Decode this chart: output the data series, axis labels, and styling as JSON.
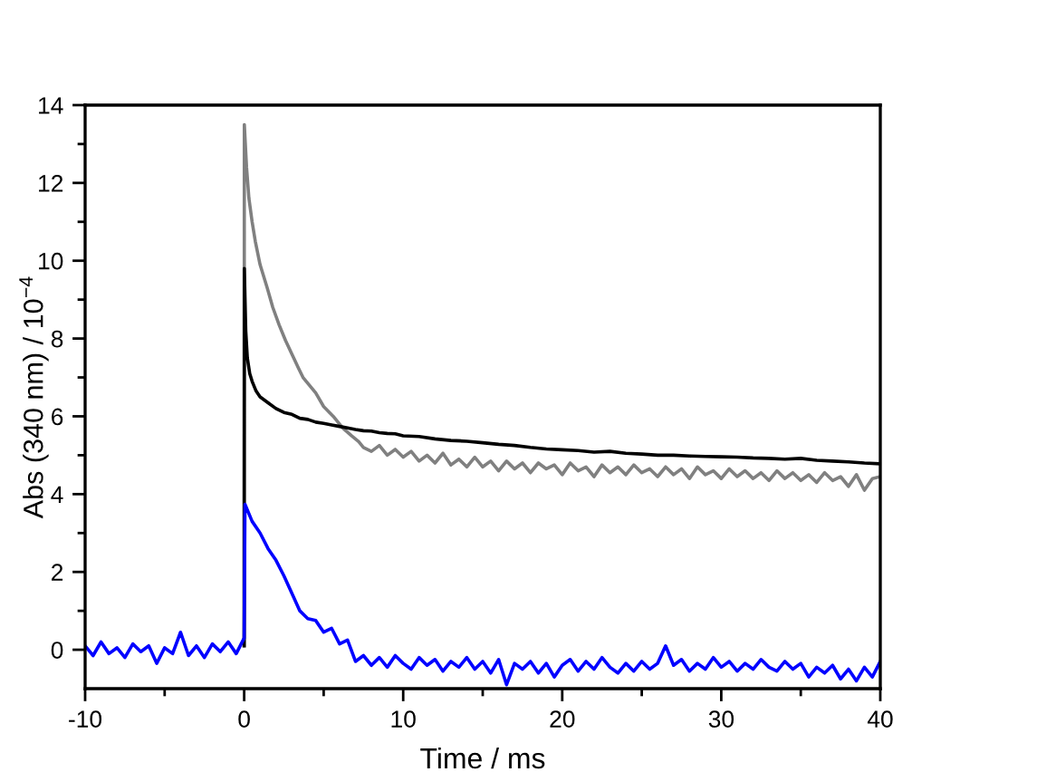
{
  "chart_data": {
    "type": "line",
    "xlabel": "Time / ms",
    "ylabel": "Abs (340 nm) / 10$^{−4}$",
    "xlim": [
      -10,
      40
    ],
    "ylim": [
      -1,
      14
    ],
    "xticks": [
      -10,
      0,
      10,
      20,
      30,
      40
    ],
    "yticks": [
      0,
      2,
      4,
      6,
      8,
      10,
      12,
      14
    ],
    "series": [
      {
        "color": "#808080",
        "x": [
          0,
          0.01,
          0.15,
          0.3,
          0.5,
          0.7,
          1.0,
          1.45,
          1.8,
          2.2,
          2.6,
          3.0,
          3.4,
          3.7,
          4.1,
          4.5,
          5.0,
          5.6,
          6.2,
          6.75,
          7.2,
          7.5,
          8,
          8.5,
          9,
          9.5,
          10,
          10.5,
          11,
          11.5,
          12,
          12.5,
          13,
          13.5,
          14,
          14.5,
          15,
          15.5,
          16,
          16.5,
          17,
          17.5,
          18,
          18.5,
          19,
          19.5,
          20,
          20.5,
          21,
          21.5,
          22,
          22.5,
          23,
          23.5,
          24,
          24.5,
          25,
          25.5,
          26,
          26.5,
          27,
          27.5,
          28,
          28.5,
          29,
          29.5,
          30,
          30.5,
          31,
          31.5,
          32,
          32.5,
          33,
          33.5,
          34,
          34.5,
          35,
          35.5,
          36,
          36.5,
          37,
          37.5,
          38,
          38.5,
          39,
          39.5,
          40
        ],
        "values": [
          0.1,
          13.5,
          12.4,
          11.6,
          11.0,
          10.5,
          9.9,
          9.3,
          8.8,
          8.35,
          7.95,
          7.6,
          7.25,
          7.0,
          6.8,
          6.6,
          6.25,
          6.0,
          5.7,
          5.5,
          5.35,
          5.2,
          5.1,
          5.25,
          5.0,
          5.15,
          4.95,
          5.1,
          4.85,
          5.0,
          4.8,
          5.05,
          4.75,
          4.9,
          4.7,
          4.95,
          4.7,
          4.85,
          4.6,
          4.85,
          4.65,
          4.8,
          4.55,
          4.8,
          4.65,
          4.75,
          4.5,
          4.8,
          4.6,
          4.7,
          4.45,
          4.75,
          4.55,
          4.7,
          4.5,
          4.75,
          4.55,
          4.65,
          4.45,
          4.7,
          4.5,
          4.65,
          4.4,
          4.7,
          4.5,
          4.6,
          4.4,
          4.65,
          4.45,
          4.6,
          4.4,
          4.55,
          4.35,
          4.6,
          4.4,
          4.55,
          4.35,
          4.5,
          4.3,
          4.55,
          4.35,
          4.45,
          4.2,
          4.5,
          4.1,
          4.4,
          4.45
        ]
      },
      {
        "color": "#000000",
        "x": [
          0,
          0.01,
          0.1,
          0.2,
          0.35,
          0.5,
          0.75,
          1,
          1.5,
          2,
          2.5,
          3,
          3.5,
          4,
          4.5,
          5,
          5.5,
          6,
          6.5,
          7,
          7.5,
          8,
          8.5,
          9,
          9.5,
          10,
          11,
          12,
          13,
          14,
          15,
          16,
          17,
          18,
          19,
          20,
          21,
          22,
          23,
          24,
          25,
          26,
          27,
          28,
          29,
          30,
          31,
          32,
          33,
          34,
          35,
          36,
          37,
          38,
          39,
          40
        ],
        "values": [
          0.1,
          9.8,
          8.2,
          7.5,
          7.1,
          6.9,
          6.65,
          6.5,
          6.35,
          6.2,
          6.1,
          6.05,
          5.95,
          5.92,
          5.85,
          5.82,
          5.78,
          5.74,
          5.7,
          5.66,
          5.63,
          5.62,
          5.58,
          5.56,
          5.55,
          5.5,
          5.48,
          5.42,
          5.38,
          5.36,
          5.32,
          5.28,
          5.25,
          5.2,
          5.16,
          5.14,
          5.12,
          5.08,
          5.1,
          5.05,
          5.03,
          5.0,
          5.0,
          4.98,
          4.97,
          4.96,
          4.95,
          4.93,
          4.92,
          4.9,
          4.92,
          4.87,
          4.85,
          4.83,
          4.8,
          4.78
        ]
      },
      {
        "color": "#0000ff",
        "x": [
          -10,
          -9.5,
          -9,
          -8.5,
          -8,
          -7.5,
          -7,
          -6.5,
          -6,
          -5.5,
          -5,
          -4.5,
          -4,
          -3.5,
          -3,
          -2.5,
          -2,
          -1.5,
          -1,
          -0.5,
          0,
          0.05,
          0.5,
          1,
          1.5,
          2,
          2.5,
          3,
          3.5,
          4,
          4.5,
          5,
          5.5,
          6,
          6.5,
          7,
          7.5,
          8,
          8.5,
          9,
          9.5,
          10,
          10.5,
          11,
          11.5,
          12,
          12.5,
          13,
          13.5,
          14,
          14.5,
          15,
          15.5,
          16,
          16.5,
          17,
          17.5,
          18,
          18.5,
          19,
          19.5,
          20,
          20.5,
          21,
          21.5,
          22,
          22.5,
          23,
          23.5,
          24,
          24.5,
          25,
          25.5,
          26,
          26.5,
          27,
          27.5,
          28,
          28.5,
          29,
          29.5,
          30,
          30.5,
          31,
          31.5,
          32,
          32.5,
          33,
          33.5,
          34,
          34.5,
          35,
          35.5,
          36,
          36.5,
          37,
          37.5,
          38,
          38.5,
          39,
          39.5,
          40
        ],
        "values": [
          0.1,
          -0.15,
          0.2,
          -0.1,
          0.05,
          -0.2,
          0.15,
          -0.05,
          0.1,
          -0.35,
          0.05,
          -0.1,
          0.45,
          -0.15,
          0.1,
          -0.2,
          0.15,
          -0.05,
          0.2,
          -0.1,
          0.3,
          3.74,
          3.3,
          3.0,
          2.6,
          2.3,
          1.9,
          1.45,
          1.0,
          0.8,
          0.75,
          0.45,
          0.55,
          0.15,
          0.25,
          -0.3,
          -0.15,
          -0.4,
          -0.2,
          -0.45,
          -0.15,
          -0.35,
          -0.5,
          -0.2,
          -0.4,
          -0.25,
          -0.55,
          -0.3,
          -0.45,
          -0.2,
          -0.5,
          -0.3,
          -0.6,
          -0.25,
          -0.9,
          -0.35,
          -0.5,
          -0.3,
          -0.6,
          -0.35,
          -0.7,
          -0.4,
          -0.25,
          -0.55,
          -0.3,
          -0.5,
          -0.2,
          -0.45,
          -0.6,
          -0.35,
          -0.55,
          -0.3,
          -0.5,
          -0.35,
          0.1,
          -0.4,
          -0.25,
          -0.55,
          -0.35,
          -0.5,
          -0.2,
          -0.45,
          -0.3,
          -0.55,
          -0.35,
          -0.5,
          -0.25,
          -0.45,
          -0.55,
          -0.3,
          -0.5,
          -0.35,
          -0.7,
          -0.45,
          -0.6,
          -0.4,
          -0.75,
          -0.5,
          -0.8,
          -0.45,
          -0.7,
          -0.3
        ]
      }
    ]
  }
}
